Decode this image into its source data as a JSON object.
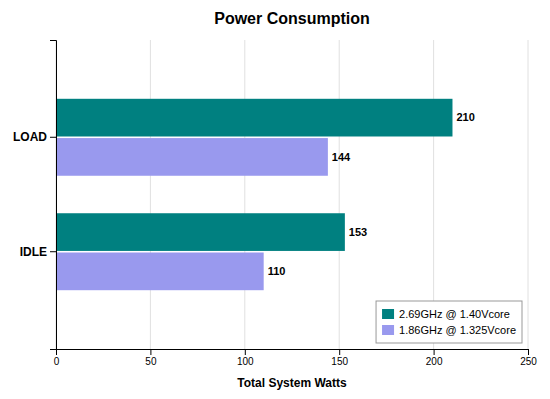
{
  "chart_data": {
    "type": "bar",
    "orientation": "horizontal",
    "title": "Power Consumption",
    "xlabel": "Total System Watts",
    "categories": [
      "IDLE",
      "LOAD"
    ],
    "series": [
      {
        "name": "2.69GHz @ 1.40Vcore",
        "color": "#008080",
        "values": [
          153,
          210
        ]
      },
      {
        "name": "1.86GHz @ 1.325Vcore",
        "color": "#9999ee",
        "values": [
          110,
          144
        ]
      }
    ],
    "xlim": [
      0,
      250
    ],
    "xticks": [
      0,
      50,
      100,
      150,
      200,
      250
    ],
    "grid": true,
    "legend": "lower right",
    "data_labels": true
  }
}
